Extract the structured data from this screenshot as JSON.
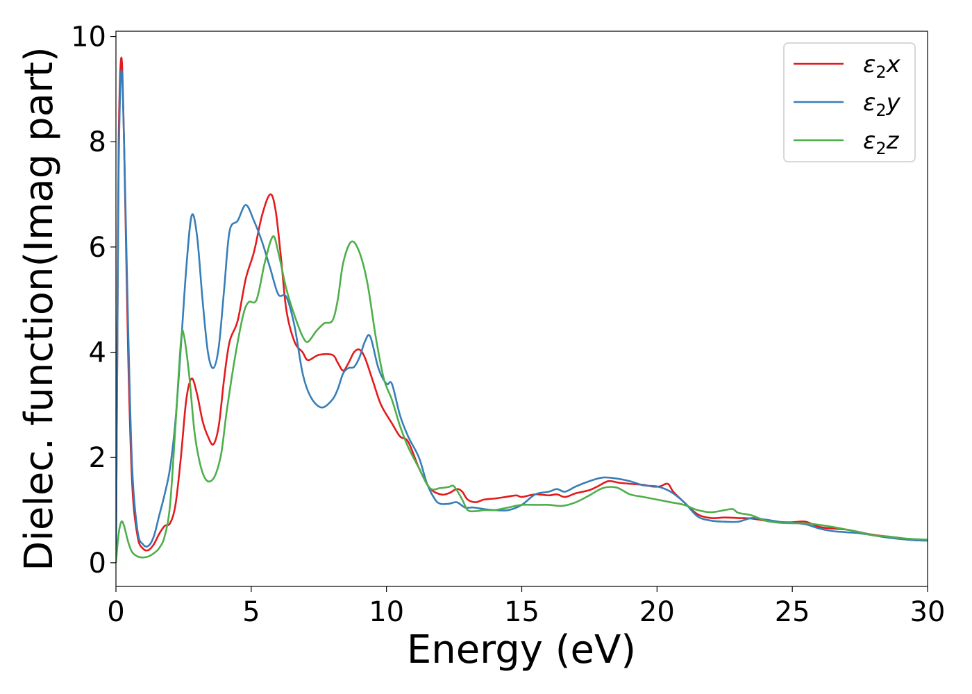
{
  "chart_data": {
    "type": "line",
    "title": "",
    "xlabel": "Energy (eV)",
    "ylabel": "Dielec. function(Imag part)",
    "xlim": [
      0,
      30
    ],
    "ylim": [
      -0.45,
      10.1
    ],
    "xticks": [
      "0",
      "5",
      "10",
      "15",
      "20",
      "25",
      "30"
    ],
    "yticks": [
      "0",
      "2",
      "4",
      "6",
      "8",
      "10"
    ],
    "grid": false,
    "legend_position": "top-right",
    "series": [
      {
        "name": "ε₂x",
        "label_base": "ε",
        "label_sub": "2",
        "label_var": "x",
        "color": "#e41a1c",
        "points": [
          [
            0,
            0
          ],
          [
            0.05,
            4.0
          ],
          [
            0.1,
            8.0
          ],
          [
            0.2,
            9.6
          ],
          [
            0.3,
            8.0
          ],
          [
            0.45,
            4.0
          ],
          [
            0.6,
            1.5
          ],
          [
            0.8,
            0.5
          ],
          [
            1.0,
            0.27
          ],
          [
            1.2,
            0.24
          ],
          [
            1.4,
            0.35
          ],
          [
            1.6,
            0.55
          ],
          [
            1.8,
            0.7
          ],
          [
            2.0,
            0.75
          ],
          [
            2.2,
            1.1
          ],
          [
            2.4,
            2.0
          ],
          [
            2.6,
            3.1
          ],
          [
            2.8,
            3.5
          ],
          [
            3.0,
            3.2
          ],
          [
            3.2,
            2.7
          ],
          [
            3.4,
            2.4
          ],
          [
            3.6,
            2.25
          ],
          [
            3.8,
            2.6
          ],
          [
            4.0,
            3.5
          ],
          [
            4.2,
            4.2
          ],
          [
            4.5,
            4.6
          ],
          [
            4.8,
            5.4
          ],
          [
            5.1,
            5.9
          ],
          [
            5.4,
            6.6
          ],
          [
            5.7,
            7.0
          ],
          [
            5.9,
            6.7
          ],
          [
            6.1,
            5.8
          ],
          [
            6.3,
            4.8
          ],
          [
            6.6,
            4.2
          ],
          [
            6.9,
            4.0
          ],
          [
            7.1,
            3.85
          ],
          [
            7.5,
            3.95
          ],
          [
            8.0,
            3.95
          ],
          [
            8.2,
            3.8
          ],
          [
            8.4,
            3.65
          ],
          [
            8.6,
            3.8
          ],
          [
            8.8,
            4.0
          ],
          [
            9.0,
            4.05
          ],
          [
            9.2,
            3.9
          ],
          [
            9.5,
            3.45
          ],
          [
            9.8,
            3.0
          ],
          [
            10.2,
            2.65
          ],
          [
            10.5,
            2.4
          ],
          [
            10.8,
            2.3
          ],
          [
            11.2,
            1.8
          ],
          [
            11.6,
            1.42
          ],
          [
            12.0,
            1.3
          ],
          [
            12.3,
            1.32
          ],
          [
            12.6,
            1.4
          ],
          [
            12.8,
            1.35
          ],
          [
            13.0,
            1.2
          ],
          [
            13.3,
            1.15
          ],
          [
            13.6,
            1.2
          ],
          [
            14.0,
            1.22
          ],
          [
            14.4,
            1.25
          ],
          [
            14.8,
            1.28
          ],
          [
            15.0,
            1.25
          ],
          [
            15.5,
            1.3
          ],
          [
            16.0,
            1.28
          ],
          [
            16.3,
            1.3
          ],
          [
            16.6,
            1.25
          ],
          [
            17.0,
            1.32
          ],
          [
            17.5,
            1.38
          ],
          [
            17.8,
            1.45
          ],
          [
            18.2,
            1.55
          ],
          [
            18.6,
            1.52
          ],
          [
            19.0,
            1.5
          ],
          [
            19.5,
            1.48
          ],
          [
            19.8,
            1.45
          ],
          [
            20.1,
            1.45
          ],
          [
            20.4,
            1.5
          ],
          [
            20.6,
            1.35
          ],
          [
            21.0,
            1.15
          ],
          [
            21.5,
            0.92
          ],
          [
            22.0,
            0.85
          ],
          [
            22.5,
            0.86
          ],
          [
            23.0,
            0.85
          ],
          [
            23.5,
            0.84
          ],
          [
            24.0,
            0.8
          ],
          [
            24.5,
            0.77
          ],
          [
            25.0,
            0.77
          ],
          [
            25.5,
            0.78
          ],
          [
            26.0,
            0.68
          ],
          [
            26.5,
            0.65
          ],
          [
            27.0,
            0.63
          ],
          [
            27.5,
            0.58
          ],
          [
            28.0,
            0.53
          ],
          [
            28.5,
            0.5
          ],
          [
            29.0,
            0.47
          ],
          [
            29.5,
            0.43
          ],
          [
            30.0,
            0.43
          ]
        ]
      },
      {
        "name": "ε₂y",
        "label_base": "ε",
        "label_sub": "2",
        "label_var": "y",
        "color": "#377eb8",
        "points": [
          [
            0,
            0.1
          ],
          [
            0.05,
            4.0
          ],
          [
            0.1,
            7.5
          ],
          [
            0.2,
            9.35
          ],
          [
            0.3,
            8.0
          ],
          [
            0.45,
            4.5
          ],
          [
            0.6,
            1.8
          ],
          [
            0.8,
            0.6
          ],
          [
            1.0,
            0.35
          ],
          [
            1.2,
            0.32
          ],
          [
            1.4,
            0.5
          ],
          [
            1.6,
            0.9
          ],
          [
            1.8,
            1.3
          ],
          [
            2.0,
            1.8
          ],
          [
            2.2,
            2.7
          ],
          [
            2.4,
            4.1
          ],
          [
            2.6,
            5.6
          ],
          [
            2.8,
            6.6
          ],
          [
            3.0,
            6.2
          ],
          [
            3.2,
            5.0
          ],
          [
            3.4,
            4.0
          ],
          [
            3.6,
            3.7
          ],
          [
            3.8,
            4.1
          ],
          [
            4.0,
            5.2
          ],
          [
            4.2,
            6.3
          ],
          [
            4.5,
            6.5
          ],
          [
            4.8,
            6.8
          ],
          [
            5.1,
            6.5
          ],
          [
            5.4,
            6.1
          ],
          [
            5.7,
            5.6
          ],
          [
            6.0,
            5.1
          ],
          [
            6.3,
            5.05
          ],
          [
            6.6,
            4.5
          ],
          [
            6.9,
            3.6
          ],
          [
            7.2,
            3.15
          ],
          [
            7.6,
            2.95
          ],
          [
            8.0,
            3.1
          ],
          [
            8.2,
            3.3
          ],
          [
            8.4,
            3.6
          ],
          [
            8.6,
            3.7
          ],
          [
            8.8,
            3.72
          ],
          [
            9.0,
            3.9
          ],
          [
            9.2,
            4.2
          ],
          [
            9.4,
            4.3
          ],
          [
            9.7,
            3.7
          ],
          [
            10.0,
            3.4
          ],
          [
            10.2,
            3.4
          ],
          [
            10.5,
            2.8
          ],
          [
            10.8,
            2.4
          ],
          [
            11.2,
            2.0
          ],
          [
            11.5,
            1.5
          ],
          [
            11.8,
            1.2
          ],
          [
            12.0,
            1.12
          ],
          [
            12.3,
            1.12
          ],
          [
            12.6,
            1.15
          ],
          [
            12.9,
            1.05
          ],
          [
            13.2,
            1.05
          ],
          [
            13.6,
            1.02
          ],
          [
            14.0,
            1.0
          ],
          [
            14.5,
            1.0
          ],
          [
            15.0,
            1.1
          ],
          [
            15.5,
            1.3
          ],
          [
            16.0,
            1.35
          ],
          [
            16.3,
            1.4
          ],
          [
            16.6,
            1.35
          ],
          [
            17.0,
            1.45
          ],
          [
            17.5,
            1.55
          ],
          [
            18.0,
            1.62
          ],
          [
            18.5,
            1.6
          ],
          [
            19.0,
            1.55
          ],
          [
            19.5,
            1.47
          ],
          [
            20.0,
            1.45
          ],
          [
            20.5,
            1.35
          ],
          [
            21.0,
            1.15
          ],
          [
            21.5,
            0.88
          ],
          [
            22.0,
            0.8
          ],
          [
            22.5,
            0.78
          ],
          [
            23.0,
            0.78
          ],
          [
            23.5,
            0.85
          ],
          [
            24.0,
            0.82
          ],
          [
            24.5,
            0.78
          ],
          [
            25.0,
            0.76
          ],
          [
            25.5,
            0.73
          ],
          [
            26.0,
            0.65
          ],
          [
            26.5,
            0.6
          ],
          [
            27.0,
            0.58
          ],
          [
            27.5,
            0.56
          ],
          [
            28.0,
            0.52
          ],
          [
            28.5,
            0.48
          ],
          [
            29.0,
            0.45
          ],
          [
            29.5,
            0.43
          ],
          [
            30.0,
            0.42
          ]
        ]
      },
      {
        "name": "ε₂z",
        "label_base": "ε",
        "label_sub": "2",
        "label_var": "z",
        "color": "#4daf4a",
        "points": [
          [
            0,
            0.0
          ],
          [
            0.1,
            0.55
          ],
          [
            0.2,
            0.78
          ],
          [
            0.3,
            0.7
          ],
          [
            0.45,
            0.4
          ],
          [
            0.6,
            0.2
          ],
          [
            0.8,
            0.12
          ],
          [
            1.0,
            0.1
          ],
          [
            1.2,
            0.12
          ],
          [
            1.4,
            0.18
          ],
          [
            1.6,
            0.28
          ],
          [
            1.8,
            0.5
          ],
          [
            2.0,
            1.1
          ],
          [
            2.2,
            2.6
          ],
          [
            2.4,
            4.2
          ],
          [
            2.5,
            4.35
          ],
          [
            2.7,
            3.6
          ],
          [
            2.9,
            2.5
          ],
          [
            3.1,
            1.9
          ],
          [
            3.3,
            1.6
          ],
          [
            3.5,
            1.55
          ],
          [
            3.7,
            1.7
          ],
          [
            3.9,
            2.1
          ],
          [
            4.1,
            2.9
          ],
          [
            4.4,
            3.9
          ],
          [
            4.7,
            4.7
          ],
          [
            4.9,
            4.95
          ],
          [
            5.2,
            5.0
          ],
          [
            5.5,
            5.7
          ],
          [
            5.8,
            6.2
          ],
          [
            6.0,
            5.9
          ],
          [
            6.3,
            5.2
          ],
          [
            6.6,
            4.7
          ],
          [
            6.9,
            4.3
          ],
          [
            7.1,
            4.2
          ],
          [
            7.4,
            4.4
          ],
          [
            7.7,
            4.55
          ],
          [
            8.0,
            4.6
          ],
          [
            8.2,
            5.0
          ],
          [
            8.4,
            5.7
          ],
          [
            8.7,
            6.1
          ],
          [
            9.0,
            5.9
          ],
          [
            9.3,
            5.3
          ],
          [
            9.6,
            4.3
          ],
          [
            9.9,
            3.5
          ],
          [
            10.2,
            3.1
          ],
          [
            10.5,
            2.6
          ],
          [
            10.8,
            2.2
          ],
          [
            11.2,
            1.8
          ],
          [
            11.6,
            1.42
          ],
          [
            12.0,
            1.42
          ],
          [
            12.3,
            1.44
          ],
          [
            12.5,
            1.45
          ],
          [
            12.8,
            1.2
          ],
          [
            13.0,
            1.0
          ],
          [
            13.3,
            0.98
          ],
          [
            13.6,
            1.0
          ],
          [
            14.0,
            1.0
          ],
          [
            14.5,
            1.05
          ],
          [
            15.0,
            1.1
          ],
          [
            15.5,
            1.1
          ],
          [
            16.0,
            1.1
          ],
          [
            16.5,
            1.08
          ],
          [
            17.0,
            1.15
          ],
          [
            17.5,
            1.28
          ],
          [
            18.0,
            1.42
          ],
          [
            18.5,
            1.43
          ],
          [
            19.0,
            1.3
          ],
          [
            19.5,
            1.25
          ],
          [
            20.0,
            1.2
          ],
          [
            20.5,
            1.15
          ],
          [
            21.0,
            1.1
          ],
          [
            21.5,
            1.0
          ],
          [
            22.0,
            0.96
          ],
          [
            22.5,
            1.0
          ],
          [
            22.8,
            1.02
          ],
          [
            23.0,
            0.95
          ],
          [
            23.5,
            0.9
          ],
          [
            24.0,
            0.8
          ],
          [
            24.5,
            0.76
          ],
          [
            25.0,
            0.75
          ],
          [
            25.5,
            0.75
          ],
          [
            26.0,
            0.72
          ],
          [
            26.5,
            0.68
          ],
          [
            27.0,
            0.63
          ],
          [
            27.5,
            0.58
          ],
          [
            28.0,
            0.52
          ],
          [
            28.5,
            0.5
          ],
          [
            29.0,
            0.47
          ],
          [
            29.5,
            0.45
          ],
          [
            30.0,
            0.44
          ]
        ]
      }
    ]
  }
}
